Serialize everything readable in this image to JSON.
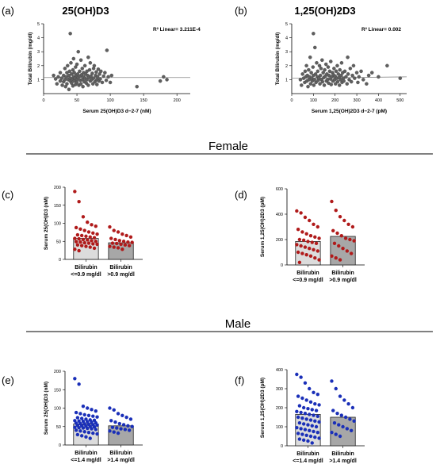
{
  "sections": {
    "female": "Female",
    "male": "Male"
  },
  "chart_data": [
    {
      "type": "scatter",
      "panel": "(a)",
      "title": "25(OH)D3",
      "xlabel": "Serum 25(OH)D3 d−2-7 (nM)",
      "ylabel": "Total Bilirubin (mg/dl)",
      "xlim": [
        0,
        220
      ],
      "ylim": [
        0,
        5
      ],
      "xticks": [
        0,
        50,
        100,
        150,
        200
      ],
      "yticks": [
        1,
        2,
        3,
        4,
        5
      ],
      "annotation": "R² Linear= 3.211E-4",
      "fit": [
        1.15,
        1.15
      ],
      "point_color": "#5f5f5f",
      "points": [
        [
          15,
          1.3
        ],
        [
          18,
          1.05
        ],
        [
          20,
          0.7
        ],
        [
          22,
          1.2
        ],
        [
          25,
          0.9
        ],
        [
          25,
          1.5
        ],
        [
          27,
          1.1
        ],
        [
          28,
          0.6
        ],
        [
          30,
          1.3
        ],
        [
          30,
          0.85
        ],
        [
          32,
          1.0
        ],
        [
          32,
          1.8
        ],
        [
          33,
          0.5
        ],
        [
          34,
          1.2
        ],
        [
          35,
          1.5
        ],
        [
          35,
          0.7
        ],
        [
          36,
          2.0
        ],
        [
          37,
          1.0
        ],
        [
          38,
          1.3
        ],
        [
          38,
          0.3
        ],
        [
          39,
          1.6
        ],
        [
          40,
          4.3
        ],
        [
          40,
          0.9
        ],
        [
          40,
          1.1
        ],
        [
          41,
          2.2
        ],
        [
          42,
          1.4
        ],
        [
          42,
          0.75
        ],
        [
          43,
          1.0
        ],
        [
          44,
          1.7
        ],
        [
          44,
          0.55
        ],
        [
          45,
          1.2
        ],
        [
          45,
          2.5
        ],
        [
          46,
          0.9
        ],
        [
          46,
          1.5
        ],
        [
          47,
          1.1
        ],
        [
          48,
          0.65
        ],
        [
          48,
          1.9
        ],
        [
          49,
          1.3
        ],
        [
          50,
          1.0
        ],
        [
          50,
          2.1
        ],
        [
          50,
          0.8
        ],
        [
          51,
          1.4
        ],
        [
          52,
          1.15
        ],
        [
          52,
          3.0
        ],
        [
          53,
          0.6
        ],
        [
          54,
          1.6
        ],
        [
          55,
          0.95
        ],
        [
          55,
          1.25
        ],
        [
          56,
          2.4
        ],
        [
          56,
          0.7
        ],
        [
          57,
          1.35
        ],
        [
          58,
          1.0
        ],
        [
          58,
          1.8
        ],
        [
          59,
          0.5
        ],
        [
          60,
          1.2
        ],
        [
          60,
          1.5
        ],
        [
          61,
          0.85
        ],
        [
          62,
          1.1
        ],
        [
          62,
          2.0
        ],
        [
          63,
          1.4
        ],
        [
          64,
          0.75
        ],
        [
          65,
          1.6
        ],
        [
          65,
          1.0
        ],
        [
          66,
          1.3
        ],
        [
          67,
          2.6
        ],
        [
          67,
          0.6
        ],
        [
          68,
          1.15
        ],
        [
          69,
          1.7
        ],
        [
          70,
          0.9
        ],
        [
          70,
          2.2
        ],
        [
          71,
          1.25
        ],
        [
          72,
          1.0
        ],
        [
          73,
          1.45
        ],
        [
          74,
          0.7
        ],
        [
          75,
          1.8
        ],
        [
          75,
          1.1
        ],
        [
          76,
          2.0
        ],
        [
          77,
          0.85
        ],
        [
          78,
          1.3
        ],
        [
          79,
          1.55
        ],
        [
          80,
          1.0
        ],
        [
          80,
          0.65
        ],
        [
          81,
          1.2
        ],
        [
          82,
          1.75
        ],
        [
          83,
          0.9
        ],
        [
          84,
          1.4
        ],
        [
          85,
          1.05
        ],
        [
          86,
          1.6
        ],
        [
          88,
          0.8
        ],
        [
          90,
          1.25
        ],
        [
          92,
          1.5
        ],
        [
          94,
          0.95
        ],
        [
          95,
          3.1
        ],
        [
          97,
          1.2
        ],
        [
          100,
          0.8
        ],
        [
          102,
          1.3
        ],
        [
          140,
          0.5
        ],
        [
          175,
          0.9
        ],
        [
          180,
          1.2
        ],
        [
          185,
          1.0
        ]
      ]
    },
    {
      "type": "scatter",
      "panel": "(b)",
      "title": "1,25(OH)2D3",
      "xlabel": "Serum 1,25(OH)2D3 d−2-7 (pM)",
      "ylabel": "Total Bilirubin (mg/dl)",
      "xlim": [
        0,
        530
      ],
      "ylim": [
        0,
        5
      ],
      "xticks": [
        0,
        100,
        200,
        300,
        400,
        500
      ],
      "yticks": [
        1,
        2,
        3,
        4,
        5
      ],
      "annotation": "R² Linear= 0.002",
      "fit": [
        1.1,
        1.2
      ],
      "point_color": "#5f5f5f",
      "points": [
        [
          40,
          1.0
        ],
        [
          45,
          0.6
        ],
        [
          50,
          1.4
        ],
        [
          55,
          1.1
        ],
        [
          60,
          0.8
        ],
        [
          62,
          1.6
        ],
        [
          65,
          1.2
        ],
        [
          68,
          2.0
        ],
        [
          70,
          0.9
        ],
        [
          72,
          1.3
        ],
        [
          75,
          0.5
        ],
        [
          78,
          1.7
        ],
        [
          80,
          1.0
        ],
        [
          82,
          1.2
        ],
        [
          85,
          2.6
        ],
        [
          87,
          0.7
        ],
        [
          90,
          1.5
        ],
        [
          92,
          1.1
        ],
        [
          95,
          0.9
        ],
        [
          98,
          1.9
        ],
        [
          100,
          1.3
        ],
        [
          100,
          4.3
        ],
        [
          102,
          0.6
        ],
        [
          105,
          1.0
        ],
        [
          107,
          3.3
        ],
        [
          110,
          1.4
        ],
        [
          112,
          0.8
        ],
        [
          115,
          2.2
        ],
        [
          118,
          1.2
        ],
        [
          120,
          1.6
        ],
        [
          122,
          0.95
        ],
        [
          125,
          1.1
        ],
        [
          128,
          2.0
        ],
        [
          130,
          0.7
        ],
        [
          132,
          1.3
        ],
        [
          135,
          1.8
        ],
        [
          138,
          1.0
        ],
        [
          140,
          2.4
        ],
        [
          142,
          0.85
        ],
        [
          145,
          1.5
        ],
        [
          148,
          1.15
        ],
        [
          150,
          0.6
        ],
        [
          152,
          1.7
        ],
        [
          155,
          1.25
        ],
        [
          158,
          2.1
        ],
        [
          160,
          0.9
        ],
        [
          162,
          1.4
        ],
        [
          165,
          1.0
        ],
        [
          168,
          1.9
        ],
        [
          170,
          0.75
        ],
        [
          172,
          1.3
        ],
        [
          175,
          1.6
        ],
        [
          178,
          1.05
        ],
        [
          180,
          2.3
        ],
        [
          182,
          0.65
        ],
        [
          185,
          1.2
        ],
        [
          188,
          1.5
        ],
        [
          190,
          0.9
        ],
        [
          192,
          1.35
        ],
        [
          195,
          1.8
        ],
        [
          198,
          1.0
        ],
        [
          200,
          1.25
        ],
        [
          202,
          0.7
        ],
        [
          205,
          1.6
        ],
        [
          208,
          1.1
        ],
        [
          210,
          2.0
        ],
        [
          212,
          0.85
        ],
        [
          215,
          1.4
        ],
        [
          218,
          1.15
        ],
        [
          220,
          0.6
        ],
        [
          222,
          1.7
        ],
        [
          225,
          1.0
        ],
        [
          228,
          1.3
        ],
        [
          230,
          2.2
        ],
        [
          232,
          0.8
        ],
        [
          235,
          1.5
        ],
        [
          238,
          1.1
        ],
        [
          240,
          0.9
        ],
        [
          245,
          1.6
        ],
        [
          250,
          1.2
        ],
        [
          255,
          0.7
        ],
        [
          258,
          2.6
        ],
        [
          260,
          1.4
        ],
        [
          265,
          1.0
        ],
        [
          270,
          1.8
        ],
        [
          275,
          0.85
        ],
        [
          280,
          1.3
        ],
        [
          285,
          2.0
        ],
        [
          290,
          1.1
        ],
        [
          300,
          1.5
        ],
        [
          305,
          0.8
        ],
        [
          310,
          1.2
        ],
        [
          320,
          1.6
        ],
        [
          330,
          1.0
        ],
        [
          345,
          0.7
        ],
        [
          355,
          1.3
        ],
        [
          370,
          1.5
        ],
        [
          400,
          1.2
        ],
        [
          440,
          2.0
        ],
        [
          500,
          1.1
        ]
      ]
    },
    {
      "type": "bar",
      "panel": "(c)",
      "ylabel": "Serum 25(OH)D3 (nM)",
      "ylim": [
        0,
        200
      ],
      "yticks": [
        0,
        50,
        100,
        150,
        200
      ],
      "categories": [
        [
          "Bilirubin",
          "<=0.9 mg/dl"
        ],
        [
          "Bilirubin",
          ">0.9 mg/dl"
        ]
      ],
      "values": [
        58,
        46
      ],
      "bar_colors": [
        "#dcdcdc",
        "#a7a7a7"
      ],
      "point_color": "#b01a1a",
      "points": [
        [
          188,
          160,
          118,
          103,
          96,
          92,
          88,
          84,
          80,
          76,
          73,
          70,
          68,
          66,
          64,
          62,
          60,
          58,
          57,
          55,
          54,
          52,
          50,
          49,
          48,
          46,
          45,
          43,
          42,
          40,
          38,
          36,
          34,
          31,
          28,
          24
        ],
        [
          90,
          80,
          76,
          70,
          66,
          62,
          58,
          55,
          52,
          50,
          48,
          47,
          45,
          44,
          42,
          40,
          38,
          36,
          34,
          32,
          28
        ]
      ]
    },
    {
      "type": "bar",
      "panel": "(d)",
      "ylabel": "Serum 1,25(OH)2D3 (pM)",
      "ylim": [
        0,
        600
      ],
      "yticks": [
        0,
        200,
        400,
        600
      ],
      "categories": [
        [
          "Bilirubin",
          "<=0.9 mg/dl"
        ],
        [
          "Bilirubin",
          ">0.9 mg/dl"
        ]
      ],
      "values": [
        185,
        225
      ],
      "bar_colors": [
        "#dcdcdc",
        "#a7a7a7"
      ],
      "point_color": "#b01a1a",
      "points": [
        [
          425,
          410,
          375,
          350,
          320,
          300,
          280,
          260,
          245,
          230,
          220,
          210,
          200,
          195,
          185,
          178,
          170,
          160,
          150,
          140,
          130,
          120,
          110,
          100,
          90,
          80,
          70,
          55,
          40,
          20
        ],
        [
          500,
          430,
          380,
          350,
          320,
          300,
          270,
          250,
          230,
          210,
          200,
          190,
          170,
          150,
          130,
          110,
          90,
          70,
          55,
          40
        ]
      ]
    },
    {
      "type": "bar",
      "panel": "(e)",
      "ylabel": "Serum 25(OH)D3 (nM)",
      "ylim": [
        0,
        200
      ],
      "yticks": [
        0,
        50,
        100,
        150,
        200
      ],
      "categories": [
        [
          "Bilirubin",
          "<=1.4 mg/dl"
        ],
        [
          "Bilirubin",
          ">1.4 mg/dl"
        ]
      ],
      "values": [
        57,
        52
      ],
      "bar_colors": [
        "#dcdcdc",
        "#a7a7a7"
      ],
      "point_color": "#1a2fb8",
      "points": [
        [
          180,
          165,
          105,
          100,
          96,
          92,
          88,
          85,
          82,
          80,
          78,
          76,
          74,
          72,
          70,
          68,
          67,
          66,
          65,
          64,
          63,
          62,
          60,
          59,
          58,
          57,
          56,
          55,
          54,
          53,
          52,
          51,
          50,
          49,
          48,
          47,
          46,
          45,
          44,
          42,
          40,
          38,
          36,
          34,
          32,
          30,
          28,
          25,
          22,
          18
        ],
        [
          100,
          95,
          85,
          80,
          75,
          70,
          66,
          62,
          58,
          55,
          52,
          50,
          48,
          46,
          44,
          42,
          40,
          38,
          35,
          32
        ]
      ]
    },
    {
      "type": "bar",
      "panel": "(f)",
      "ylabel": "Serum 1,25(OH)2D3 (pM)",
      "ylim": [
        0,
        400
      ],
      "yticks": [
        0,
        100,
        200,
        300,
        400
      ],
      "categories": [
        [
          "Bilirubin",
          "<=1.4 mg/dl"
        ],
        [
          "Bilirubin",
          ">1.4 mg/dl"
        ]
      ],
      "values": [
        165,
        150
      ],
      "bar_colors": [
        "#dcdcdc",
        "#a7a7a7"
      ],
      "point_color": "#1a2fb8",
      "points": [
        [
          375,
          360,
          330,
          300,
          280,
          270,
          260,
          250,
          240,
          230,
          220,
          215,
          210,
          200,
          195,
          190,
          185,
          180,
          175,
          170,
          165,
          160,
          155,
          150,
          145,
          140,
          135,
          130,
          125,
          120,
          115,
          110,
          105,
          100,
          95,
          90,
          85,
          80,
          75,
          70,
          65,
          60,
          55,
          50,
          45,
          40,
          35,
          30,
          25,
          15
        ],
        [
          340,
          300,
          260,
          240,
          220,
          200,
          185,
          170,
          160,
          150,
          140,
          130,
          120,
          110,
          100,
          90,
          80,
          70,
          60,
          50
        ]
      ]
    }
  ]
}
